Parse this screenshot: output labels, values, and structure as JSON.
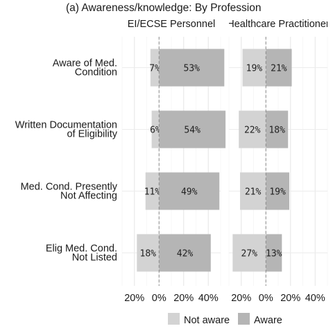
{
  "chart_data": {
    "type": "bar",
    "title": "(a) Awareness/knowledge: By Profession",
    "panels": [
      "EI/ECSE Personnel",
      "Healthcare Practitioner"
    ],
    "categories": [
      [
        "Aware of Med.",
        "Condition"
      ],
      [
        "Written Documentation",
        "of Eligibility"
      ],
      [
        "Med. Cond. Presently",
        "Not Affecting"
      ],
      [
        "Elig Med. Cond.",
        "Not Listed"
      ]
    ],
    "series": [
      {
        "name": "Not aware",
        "color": "#d3d3d3",
        "direction": "negative",
        "values": [
          [
            7,
            6,
            11,
            18
          ],
          [
            19,
            22,
            21,
            27
          ]
        ],
        "labels": [
          [
            "7%",
            "6%",
            "11%",
            "18%"
          ],
          [
            "19%",
            "22%",
            "21%",
            "27%"
          ]
        ]
      },
      {
        "name": "Aware",
        "color": "#b5b5b5",
        "direction": "positive",
        "values": [
          [
            53,
            54,
            49,
            42
          ],
          [
            21,
            18,
            19,
            13
          ]
        ],
        "labels": [
          [
            "53%",
            "54%",
            "49%",
            "42%"
          ],
          [
            "21%",
            "18%",
            "19%",
            "13%"
          ]
        ]
      }
    ],
    "xlim": [
      -30,
      50
    ],
    "xticks": [
      -20,
      0,
      20,
      40
    ],
    "xtick_labels": [
      "20%",
      "0%",
      "20%",
      "40%"
    ],
    "legend_position": "bottom",
    "grid": true,
    "zero_line": "dashed"
  }
}
